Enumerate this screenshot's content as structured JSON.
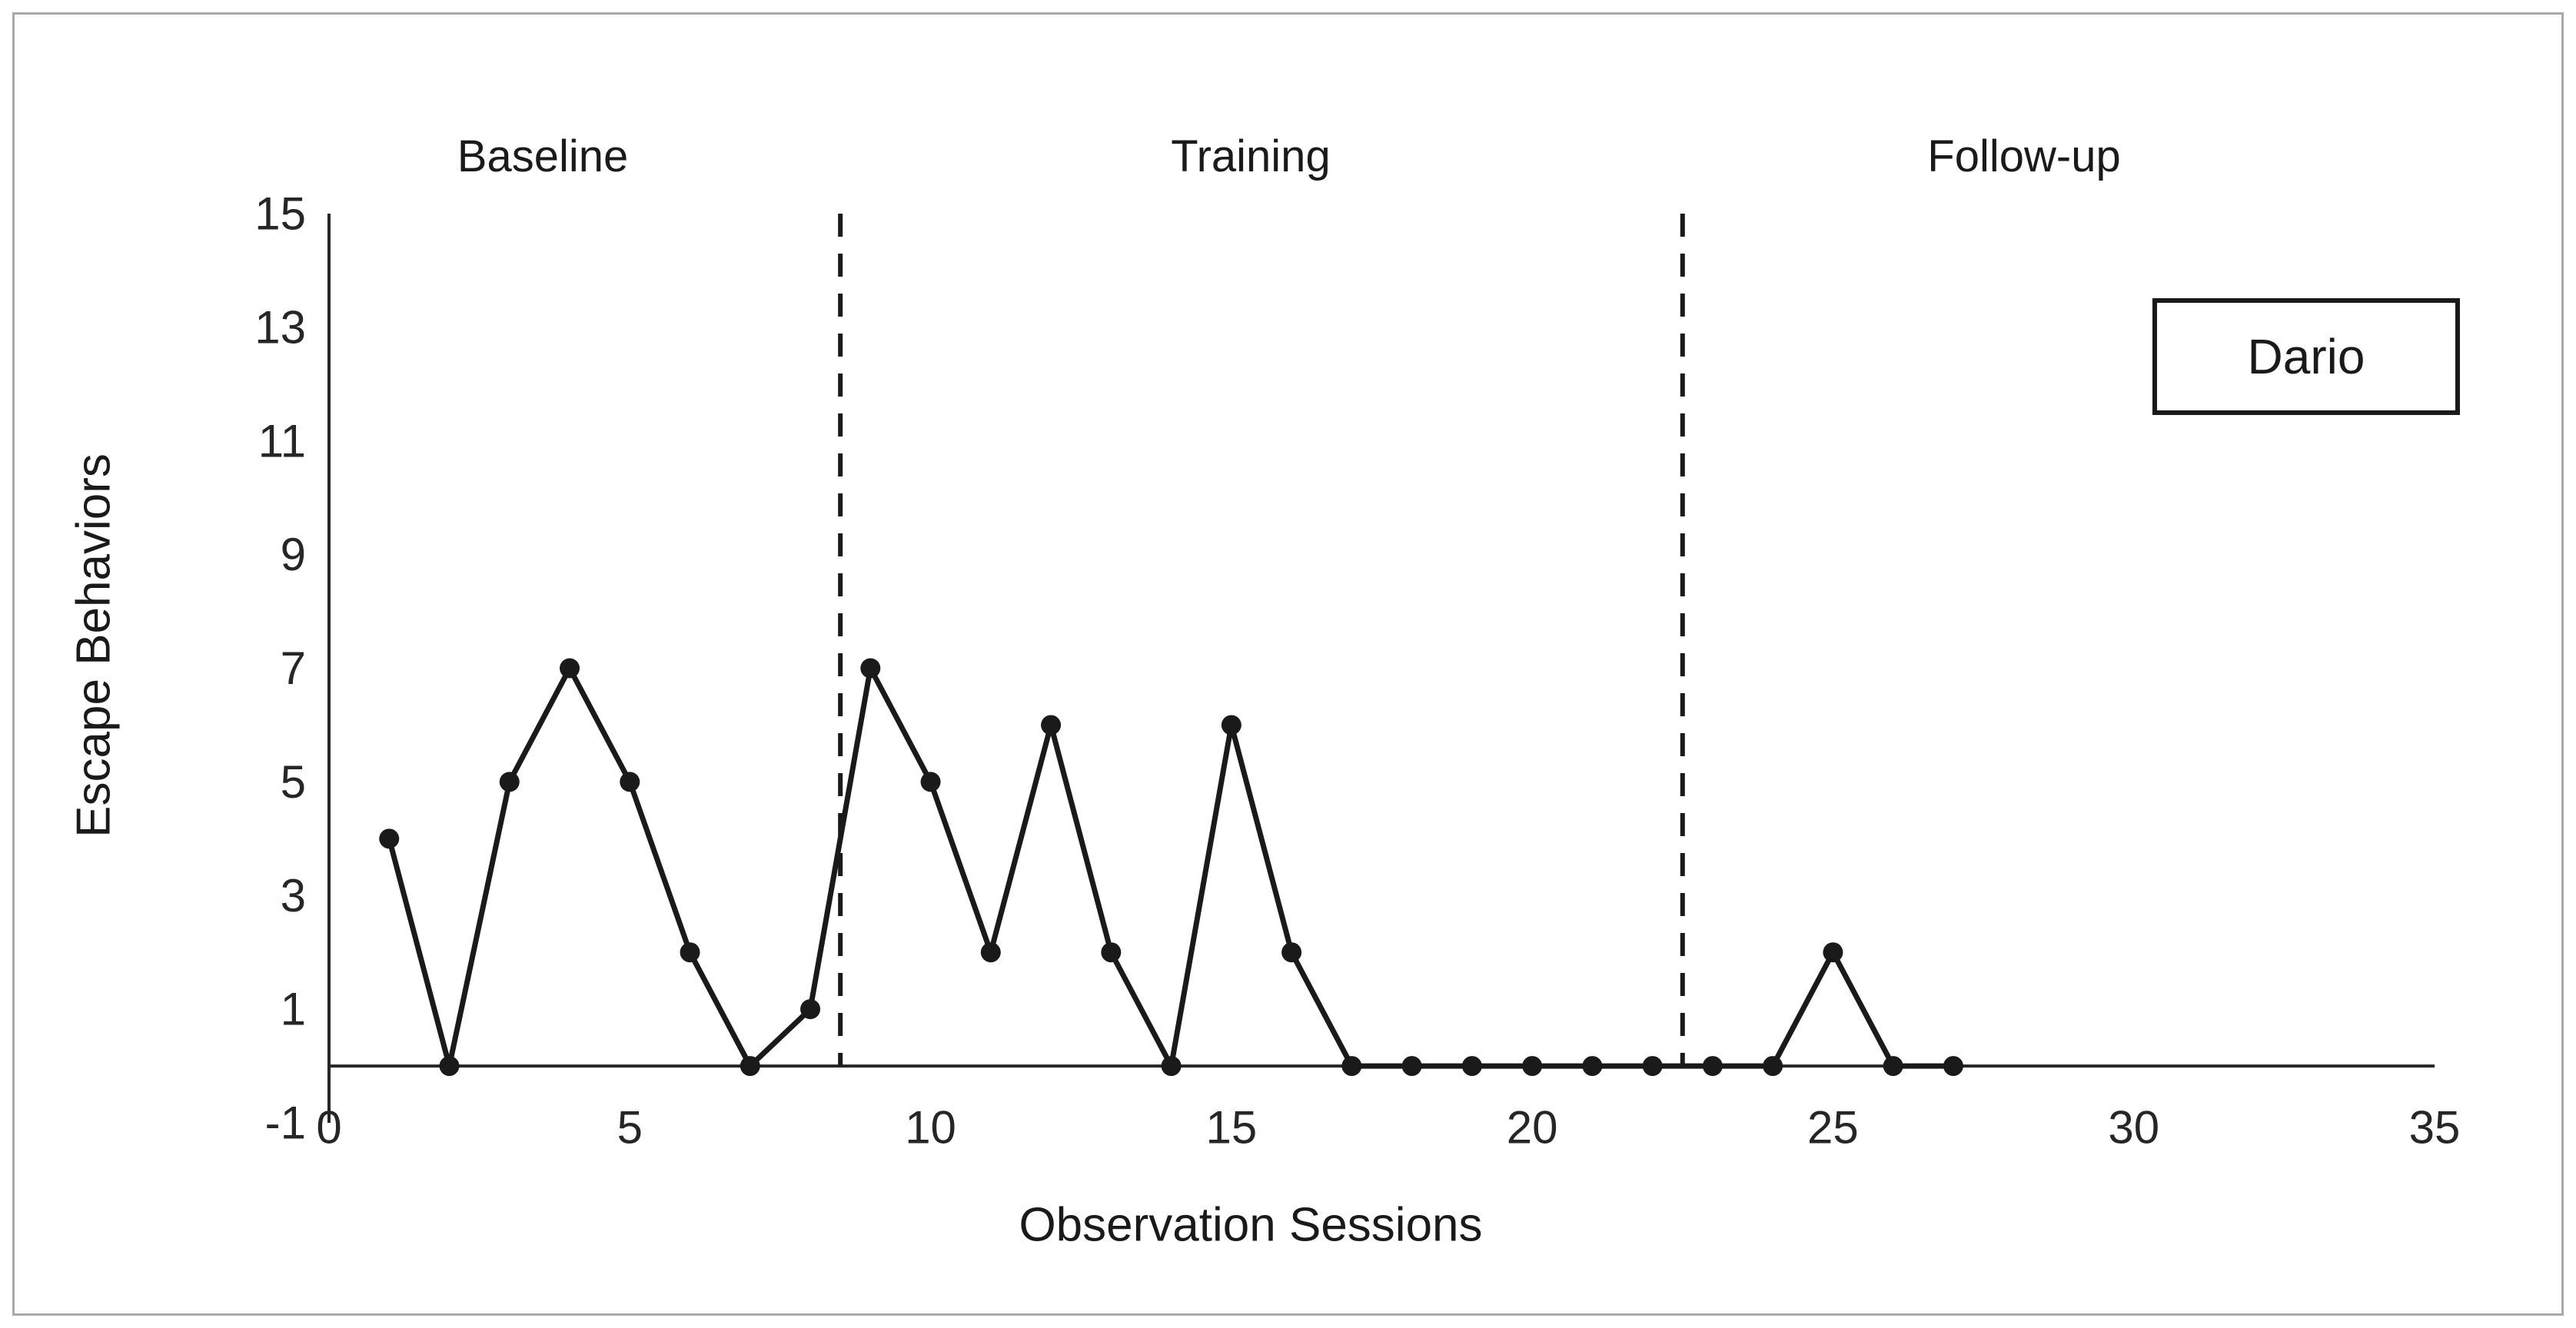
{
  "accent_colors": {
    "series": "#1a1a1a",
    "axis": "#262626",
    "frame_border": "#a9a9a9",
    "background": "#ffffff"
  },
  "legend": {
    "label": "Dario"
  },
  "chart_data": {
    "type": "line",
    "title": "",
    "xlabel": "Observation Sessions",
    "ylabel": "Escape Behaviors",
    "xlim": [
      0,
      35
    ],
    "ylim": [
      -1,
      15
    ],
    "xticks": [
      0,
      5,
      10,
      15,
      20,
      25,
      30,
      35
    ],
    "yticks": [
      -1,
      1,
      3,
      5,
      7,
      9,
      11,
      13,
      15
    ],
    "x": [
      1,
      2,
      3,
      4,
      5,
      6,
      7,
      8,
      9,
      10,
      11,
      12,
      13,
      14,
      15,
      16,
      17,
      18,
      19,
      20,
      21,
      22,
      23,
      24,
      25,
      26,
      27
    ],
    "y": [
      4,
      0,
      5,
      7,
      5,
      2,
      0,
      1,
      7,
      5,
      2,
      6,
      2,
      0,
      6,
      2,
      0,
      0,
      0,
      0,
      0,
      0,
      0,
      0,
      2,
      0,
      0
    ],
    "series_name": "Dario",
    "marker": "filled-circle",
    "grid": "off",
    "legend_position": "top-right",
    "phase_lines_x": [
      8.5,
      22.5
    ],
    "phases": [
      {
        "label": "Baseline",
        "label_x": 3.55
      },
      {
        "label": "Training",
        "label_x": 15.3
      },
      {
        "label": "Follow-up",
        "label_x": 28.2
      }
    ]
  }
}
